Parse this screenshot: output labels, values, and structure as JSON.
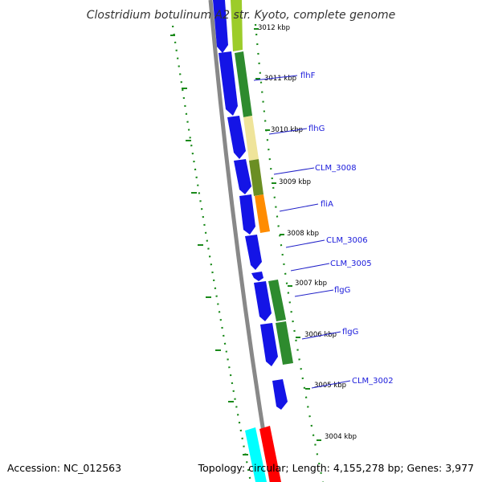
{
  "title": "Clostridium botulinum A2 str. Kyoto, complete genome",
  "accession": "Accession: NC_012563",
  "summary": "Topology: circular; Length: 4,155,278 bp; Genes: 3,977",
  "colors": {
    "cds_strand": "#1414e6",
    "backbone": "#888888",
    "tick": "#1a8a1a",
    "label_line": "#2020c8"
  },
  "ticks": [
    "3012 kbp",
    "3011 kbp",
    "3010 kbp",
    "3009 kbp",
    "3008 kbp",
    "3007 kbp",
    "3006 kbp",
    "3005 kbp",
    "3004 kbp"
  ],
  "genes": [
    "flhF",
    "flhG",
    "CLM_3008",
    "fliA",
    "CLM_3006",
    "CLM_3005",
    "flgG",
    "flgG",
    "CLM_3002"
  ],
  "feature_colors": [
    "#9ccc2a",
    "#2e8b2e",
    "#efe49a",
    "#6b8e23",
    "#ff8c00",
    "#2e8b2e",
    "#2e8b2e",
    "#00ffff",
    "#ff0000"
  ]
}
